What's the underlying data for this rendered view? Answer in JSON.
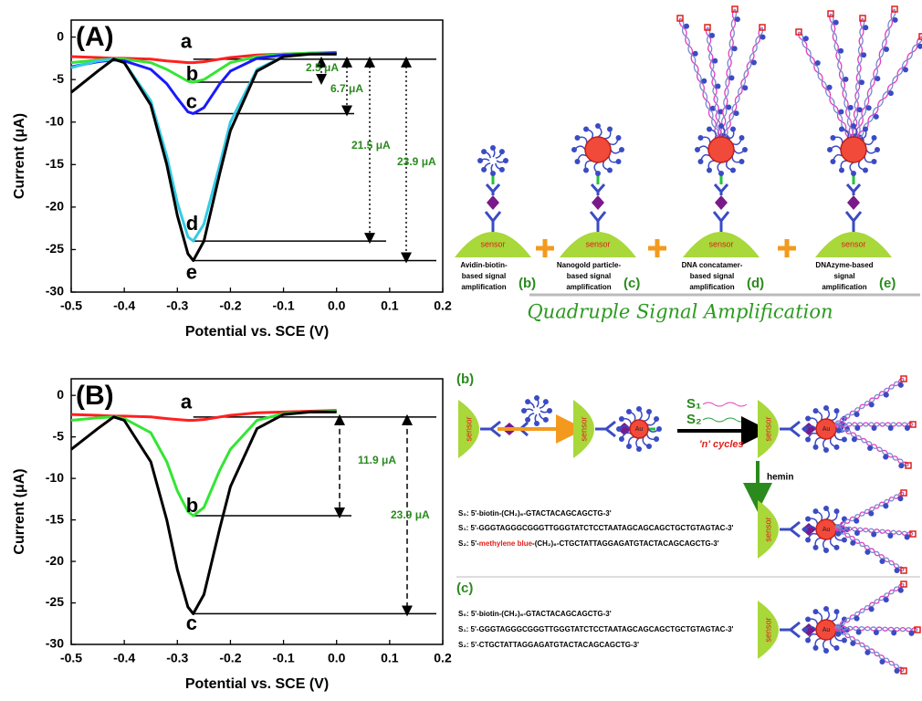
{
  "chart_data": [
    {
      "type": "line",
      "panel_label": "(A)",
      "x_label": "Potential vs. SCE (V)",
      "y_label": "Current (μA)",
      "xlim": [
        -0.5,
        0.2
      ],
      "ylim": [
        -30,
        2
      ],
      "xticks": [
        -0.5,
        -0.4,
        -0.3,
        -0.2,
        -0.1,
        {
          "value": 0,
          "label": "0.0"
        },
        0.1,
        0.2
      ],
      "yticks": [
        0,
        -5,
        -10,
        -15,
        -20,
        -25,
        -30
      ],
      "x": [
        -0.5,
        -0.45,
        -0.42,
        -0.4,
        -0.35,
        -0.32,
        -0.3,
        -0.28,
        -0.27,
        -0.25,
        -0.22,
        -0.2,
        -0.15,
        -0.1,
        -0.05,
        0
      ],
      "series": [
        {
          "name": "a",
          "color": "#ff2020",
          "values": [
            -2.3,
            -2.4,
            -2.5,
            -2.5,
            -2.6,
            -2.8,
            -2.9,
            -3,
            -3,
            -2.9,
            -2.6,
            -2.4,
            -2.1,
            -2,
            -1.9,
            -1.8
          ]
        },
        {
          "name": "b",
          "color": "#33e633",
          "values": [
            -3,
            -2.7,
            -2.6,
            -2.6,
            -3,
            -3.8,
            -4.5,
            -5.2,
            -5.3,
            -5,
            -3.8,
            -3,
            -2.3,
            -2,
            -1.9,
            -1.9
          ]
        },
        {
          "name": "c",
          "color": "#1a1aff",
          "values": [
            -3.5,
            -2.9,
            -2.7,
            -2.8,
            -3.8,
            -5.5,
            -7.2,
            -8.8,
            -9,
            -8.3,
            -5.5,
            -4,
            -2.5,
            -2.1,
            -2,
            -1.9
          ]
        },
        {
          "name": "d",
          "color": "#33cce6",
          "values": [
            -3.6,
            -2.8,
            -2.6,
            -3,
            -7.5,
            -14,
            -19.5,
            -23.5,
            -24,
            -22,
            -15,
            -10,
            -3.8,
            -2.3,
            -2,
            -2
          ]
        },
        {
          "name": "e",
          "color": "#000000",
          "values": [
            -6.5,
            -4,
            -2.6,
            -3,
            -8,
            -15,
            -21,
            -25.5,
            -26.3,
            -24,
            -16,
            -11,
            -4,
            -2.3,
            -2,
            -2
          ]
        }
      ],
      "annotations": [
        "2.5 μA",
        "6.7 μA",
        "21.5 μA",
        "23.9 μA"
      ]
    },
    {
      "type": "line",
      "panel_label": "(B)",
      "x_label": "Potential vs. SCE (V)",
      "y_label": "Current (μA)",
      "xlim": [
        -0.5,
        0.2
      ],
      "ylim": [
        -30,
        2
      ],
      "xticks": [
        -0.5,
        -0.4,
        -0.3,
        -0.2,
        -0.1,
        {
          "value": 0,
          "label": "0.0"
        },
        0.1,
        0.2
      ],
      "yticks": [
        0,
        -5,
        -10,
        -15,
        -20,
        -25,
        -30
      ],
      "x": [
        -0.5,
        -0.45,
        -0.42,
        -0.4,
        -0.35,
        -0.32,
        -0.3,
        -0.28,
        -0.27,
        -0.25,
        -0.22,
        -0.2,
        -0.15,
        -0.1,
        -0.05,
        0
      ],
      "series": [
        {
          "name": "a",
          "color": "#ff2020",
          "values": [
            -2.3,
            -2.4,
            -2.5,
            -2.5,
            -2.6,
            -2.8,
            -2.9,
            -3,
            -3,
            -2.9,
            -2.6,
            -2.4,
            -2.1,
            -2,
            -1.9,
            -1.8
          ]
        },
        {
          "name": "b",
          "color": "#33e633",
          "values": [
            -3,
            -2.7,
            -2.6,
            -2.8,
            -4.5,
            -8,
            -11.5,
            -14,
            -14.5,
            -13.5,
            -9,
            -6.5,
            -3,
            -2.2,
            -2,
            -1.9
          ]
        },
        {
          "name": "c",
          "color": "#000000",
          "values": [
            -6.5,
            -4,
            -2.6,
            -3,
            -8,
            -15,
            -21,
            -25.5,
            -26.3,
            -24,
            -16,
            -11,
            -4,
            -2.3,
            -2,
            -2
          ]
        }
      ],
      "annotations": [
        "11.9 μA",
        "23.9 μA"
      ]
    }
  ],
  "diagram_top": {
    "sensor_labels": [
      "sensor",
      "sensor",
      "sensor",
      "sensor"
    ],
    "steps": [
      {
        "tag": "(b)",
        "lines": [
          "Avidin-biotin-",
          "based signal",
          "amplification"
        ]
      },
      {
        "tag": "(c)",
        "lines": [
          "Nanogold particle-",
          "based signal",
          "amplification"
        ]
      },
      {
        "tag": "(d)",
        "lines": [
          "DNA concatamer-",
          "based signal",
          "amplification"
        ]
      },
      {
        "tag": "(e)",
        "lines": [
          "DNAzyme-based",
          "signal",
          "amplification"
        ]
      }
    ],
    "caption": "Quadruple Signal Amplification"
  },
  "diagram_bottom": {
    "panel_b": "(b)",
    "panel_c": "(c)",
    "sensor_labels": [
      "sensor",
      "sensor",
      "sensor",
      "sensor",
      "sensor"
    ],
    "au_labels": [
      "Au",
      "Au",
      "Au",
      "Au",
      "Au",
      "Au"
    ],
    "s1": "S₁",
    "s2": "S₂",
    "cycles": "'n' cycles",
    "hemin": "hemin",
    "seq_b": [
      [
        "S₀: 5'-biotin-(CH₂)₆-GTACTACAGCAGCTG-3'"
      ],
      [
        "S₁: 5'-GGGTAGGGCGGGTTGGGTATCTCCTAATAGCAGCAGCTGCTGTAGTAC-3'"
      ],
      [
        "S₂: 5'-",
        "methylene blue",
        "-(CH₂)₆-CTGCTATTAGGAGATGTACTACAGCAGCTG-3'"
      ]
    ],
    "seq_c": [
      [
        "S₀: 5'-biotin-(CH₂)₆-GTACTACAGCAGCTG-3'"
      ],
      [
        "S₁: 5'-GGGTAGGGCGGGTTGGGTATCTCCTAATAGCAGCAGCTGCTGTAGTAC-3'"
      ],
      [
        "S₂: 5'-CTGCTATTAGGAGATGTACTACAGCAGCTG-3'"
      ]
    ]
  }
}
